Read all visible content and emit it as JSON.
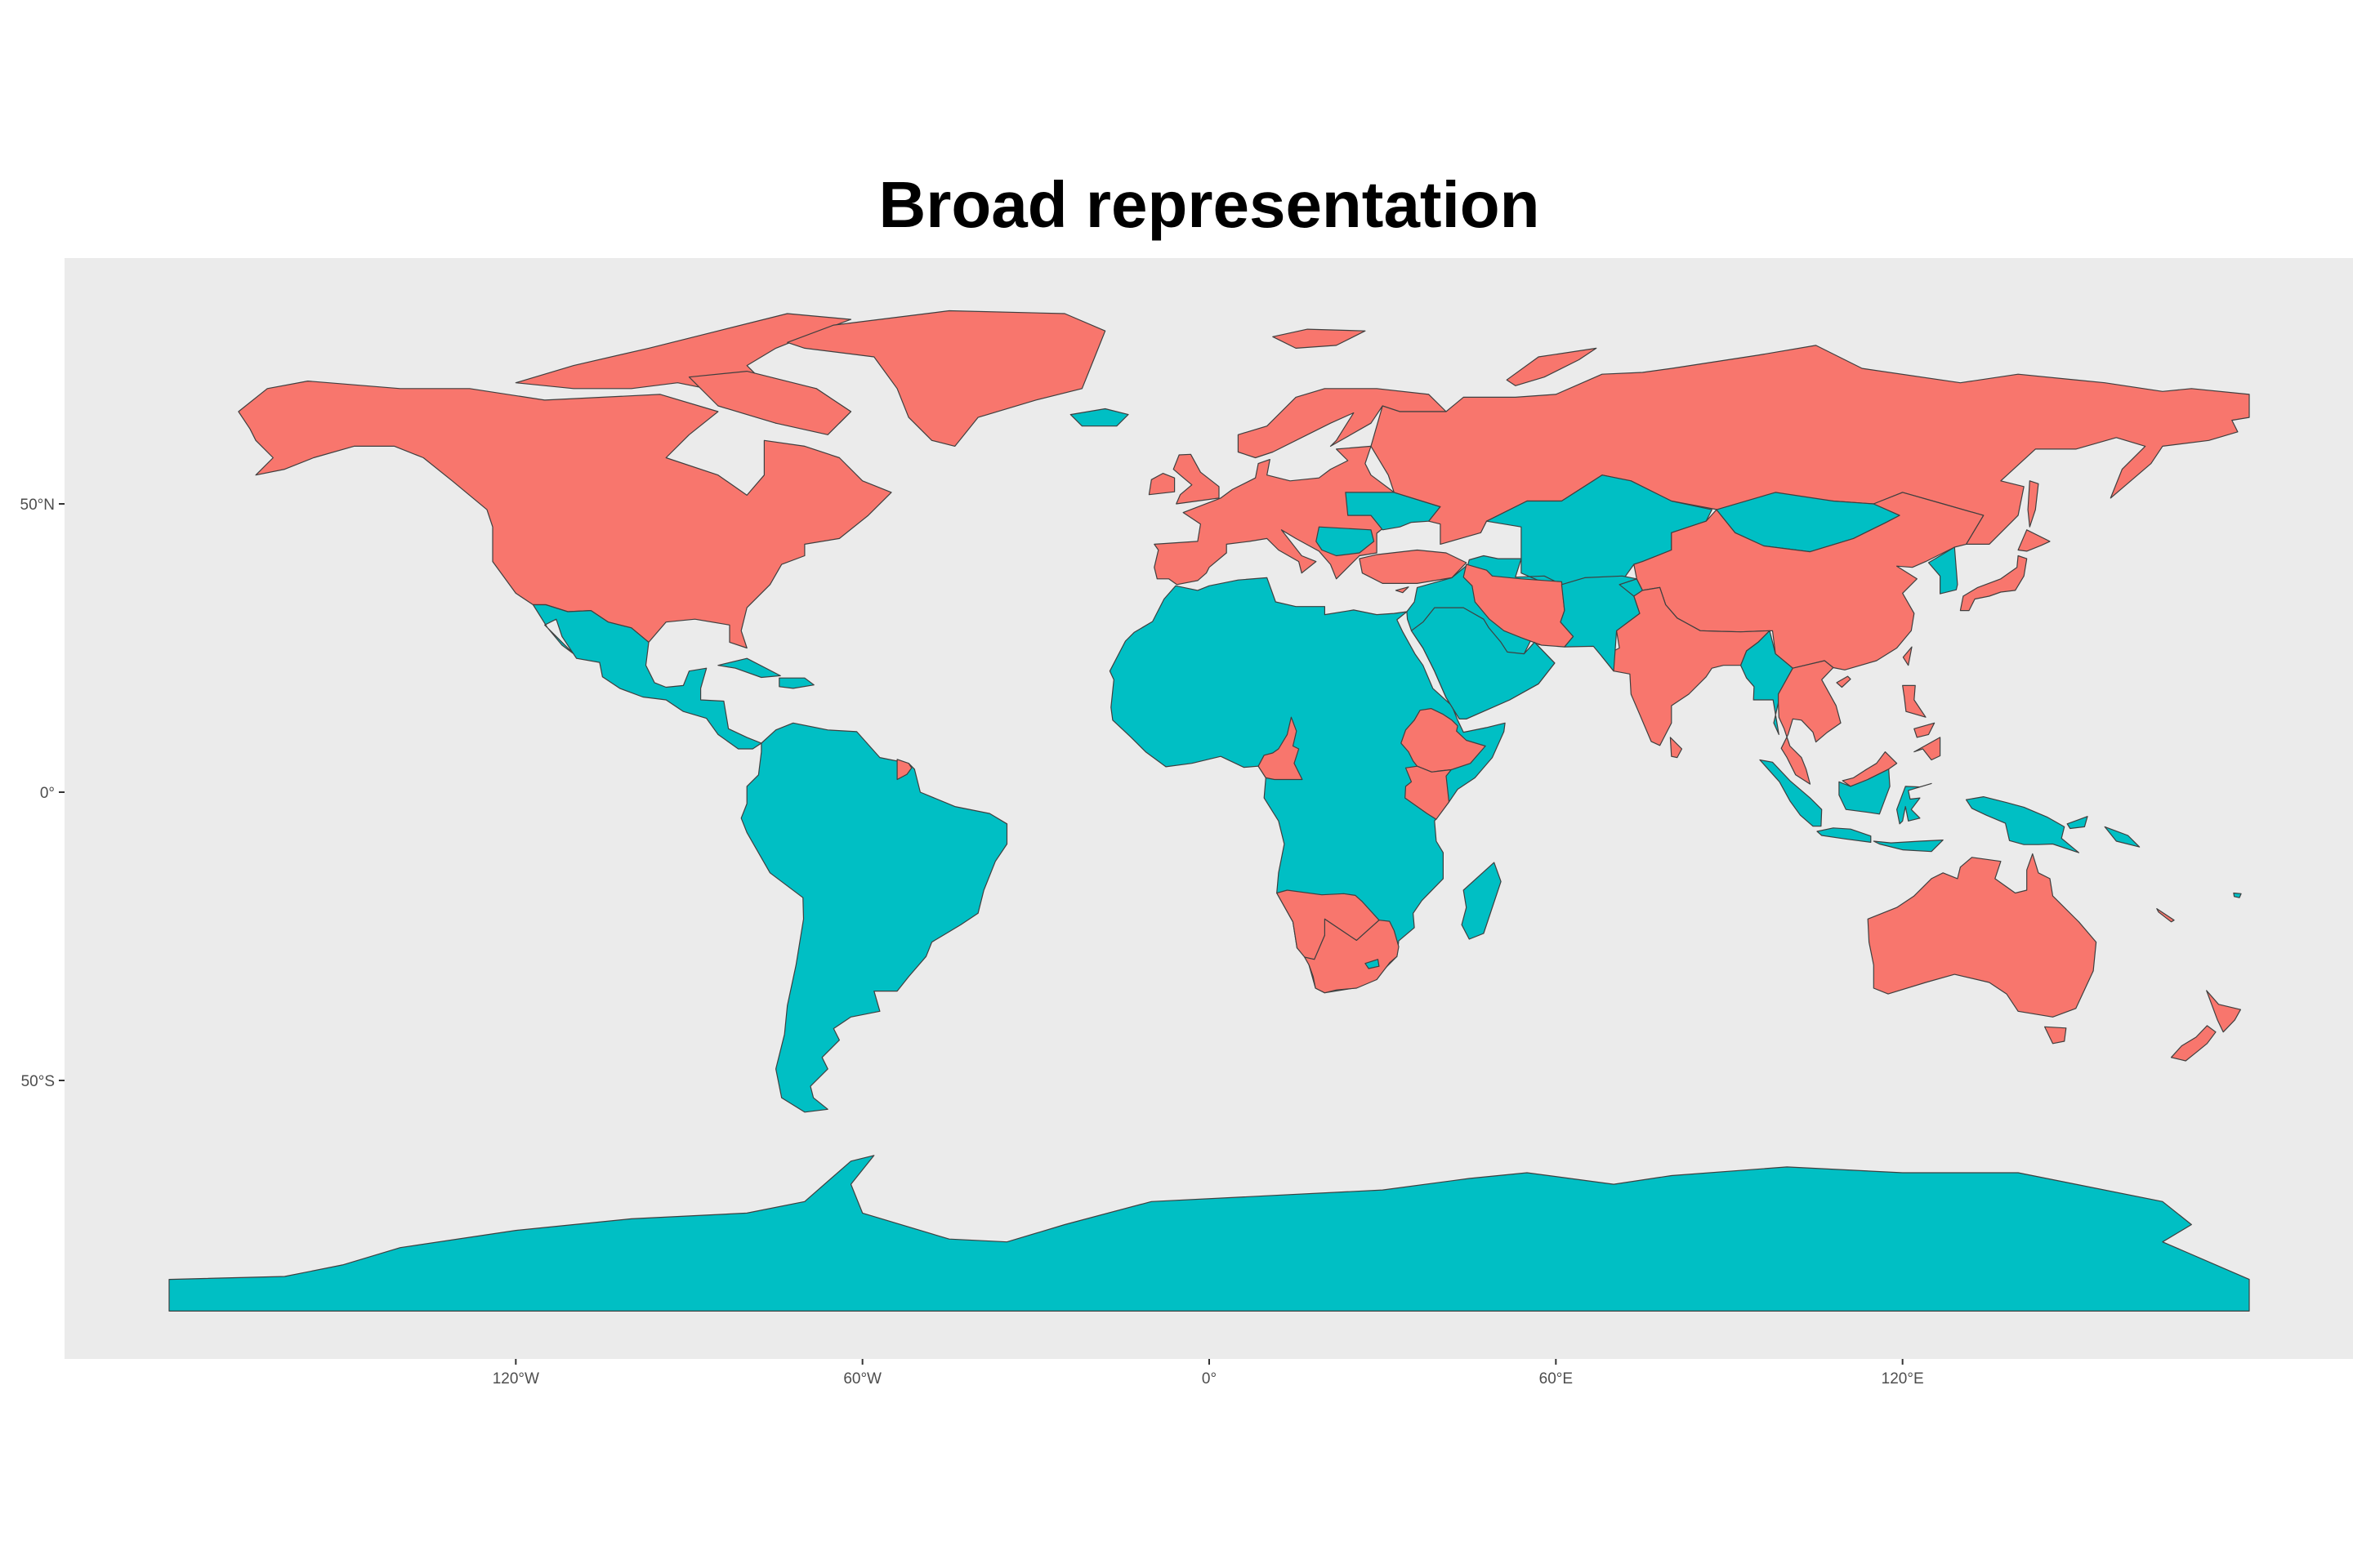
{
  "map": {
    "title": "Broad representation",
    "x_ticks": [
      {
        "label": "120°W",
        "lon": -120
      },
      {
        "label": "60°W",
        "lon": -60
      },
      {
        "label": "0°",
        "lon": 0
      },
      {
        "label": "60°E",
        "lon": 60
      },
      {
        "label": "120°E",
        "lon": 120
      }
    ],
    "y_ticks": [
      {
        "label": "50°N",
        "lat": 50
      },
      {
        "label": "0°",
        "lat": 0
      },
      {
        "label": "50°S",
        "lat": -50
      }
    ],
    "xlim": [
      -180,
      180
    ],
    "ylim": [
      -90,
      84
    ],
    "grid": false,
    "legend": "none",
    "colors": {
      "panel": "#ebebeb",
      "represented": "#f8766d",
      "not_represented": "#00bfc4",
      "border": "#3f3f3f"
    },
    "regions_represented": [
      "North America",
      "Greenland",
      "Europe",
      "Russia",
      "China",
      "India",
      "Japan",
      "Southeast Asia",
      "Australia",
      "New Zealand",
      "South Africa",
      "Ethiopia",
      "Cameroon",
      "Kenya",
      "Turkey",
      "Iran"
    ],
    "regions_not_represented": [
      "Latin America",
      "South America",
      "Africa",
      "Middle East",
      "Central Asia",
      "Mongolia",
      "Korea",
      "Indonesia",
      "Papua New Guinea",
      "Madagascar",
      "Iceland",
      "Antarctica"
    ]
  }
}
